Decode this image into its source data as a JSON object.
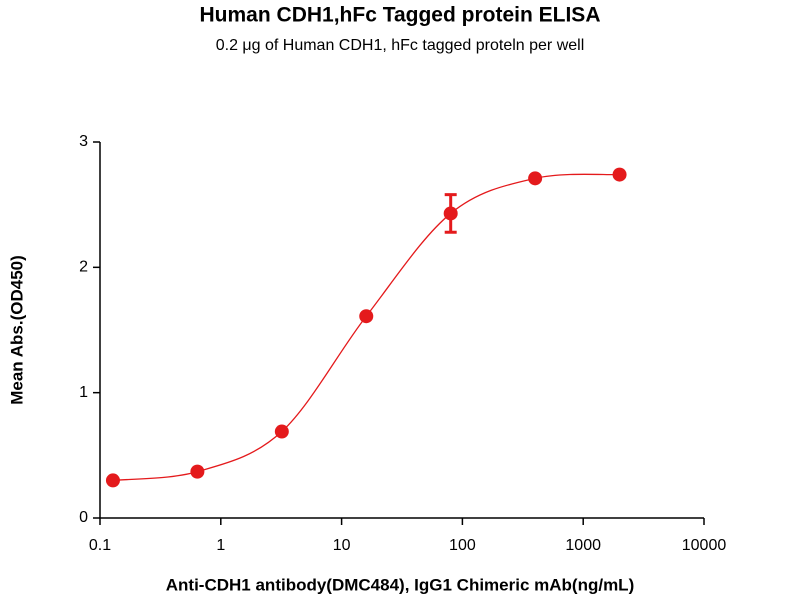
{
  "chart_data": {
    "type": "scatter",
    "title": "Human CDH1,hFc Tagged protein ELISA",
    "subtitle": "0.2 μg of Human CDH1, hFc tagged proteln per well",
    "x_label": "Anti-CDH1 antibody(DMC484), IgG1 Chimeric mAb(ng/mL)",
    "y_label": "Mean Abs.(OD450)",
    "x": [
      0.128,
      0.64,
      3.2,
      16,
      80,
      400,
      2000
    ],
    "series": [
      {
        "color": "#e41a1c",
        "values": [
          0.3,
          0.37,
          0.69,
          1.61,
          2.43,
          2.71,
          2.74
        ],
        "errors": [
          null,
          null,
          null,
          null,
          0.15,
          null,
          null
        ]
      }
    ],
    "x_log": true,
    "xlim": [
      0.1,
      10000
    ],
    "xticks": [
      0.1,
      1,
      10,
      100,
      1000,
      10000
    ],
    "ylim": [
      0,
      3
    ],
    "yticks": [
      0,
      1,
      2,
      3
    ],
    "grid": false
  }
}
